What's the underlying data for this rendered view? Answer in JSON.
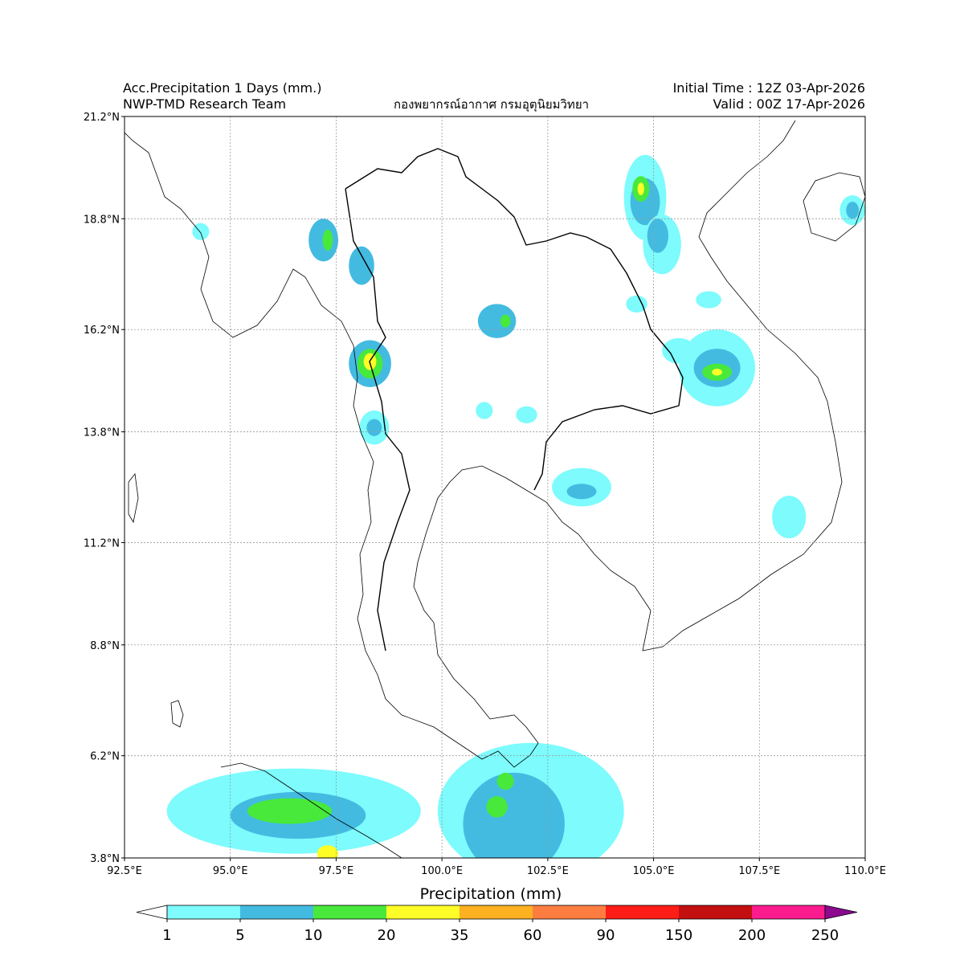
{
  "header": {
    "title": "Acc.Precipitation 1 Days (mm.)",
    "team": "NWP-TMD Research Team",
    "agency": "กองพยากรณ์อากาศ กรมอุตุนิยมวิทยา",
    "initial_time": "Initial Time : 12Z 03-Apr-2026",
    "valid_time": "Valid : 00Z 17-Apr-2026"
  },
  "map": {
    "lon_range": [
      92.5,
      110.0
    ],
    "lat_range": [
      3.8,
      21.2
    ],
    "lat_ticks": [
      {
        "value": 21.2,
        "label": "21.2°N"
      },
      {
        "value": 18.8,
        "label": "18.8°N"
      },
      {
        "value": 16.2,
        "label": "16.2°N"
      },
      {
        "value": 13.8,
        "label": "13.8°N"
      },
      {
        "value": 11.2,
        "label": "11.2°N"
      },
      {
        "value": 8.8,
        "label": "8.8°N"
      },
      {
        "value": 6.2,
        "label": "6.2°N"
      },
      {
        "value": 3.8,
        "label": "3.8°N"
      }
    ],
    "lon_ticks": [
      {
        "value": 92.5,
        "label": "92.5°E"
      },
      {
        "value": 95.0,
        "label": "95.0°E"
      },
      {
        "value": 97.5,
        "label": "97.5°E"
      },
      {
        "value": 100.0,
        "label": "100.0°E"
      },
      {
        "value": 102.5,
        "label": "102.5°E"
      },
      {
        "value": 105.0,
        "label": "105.0°E"
      },
      {
        "value": 107.5,
        "label": "107.5°E"
      },
      {
        "value": 110.0,
        "label": "110.0°E"
      }
    ],
    "grid": true,
    "rain_areas": [
      {
        "lon": 94.3,
        "lat": 18.5,
        "rx": 0.2,
        "ry": 0.2,
        "level": 1
      },
      {
        "lon": 97.2,
        "lat": 18.3,
        "rx": 0.35,
        "ry": 0.5,
        "level": 2
      },
      {
        "lon": 97.3,
        "lat": 18.3,
        "rx": 0.12,
        "ry": 0.25,
        "level": 3
      },
      {
        "lon": 98.1,
        "lat": 17.7,
        "rx": 0.3,
        "ry": 0.45,
        "level": 2
      },
      {
        "lon": 98.3,
        "lat": 15.4,
        "rx": 0.5,
        "ry": 0.55,
        "level": 2
      },
      {
        "lon": 98.3,
        "lat": 15.4,
        "rx": 0.3,
        "ry": 0.35,
        "level": 3
      },
      {
        "lon": 98.3,
        "lat": 15.45,
        "rx": 0.15,
        "ry": 0.2,
        "level": 4
      },
      {
        "lon": 98.4,
        "lat": 13.9,
        "rx": 0.35,
        "ry": 0.4,
        "level": 1
      },
      {
        "lon": 98.4,
        "lat": 13.9,
        "rx": 0.18,
        "ry": 0.2,
        "level": 2
      },
      {
        "lon": 101.3,
        "lat": 16.4,
        "rx": 0.45,
        "ry": 0.4,
        "level": 2
      },
      {
        "lon": 101.5,
        "lat": 16.4,
        "rx": 0.12,
        "ry": 0.15,
        "level": 3
      },
      {
        "lon": 101.0,
        "lat": 14.3,
        "rx": 0.2,
        "ry": 0.2,
        "level": 1
      },
      {
        "lon": 102.0,
        "lat": 14.2,
        "rx": 0.25,
        "ry": 0.2,
        "level": 1
      },
      {
        "lon": 104.8,
        "lat": 19.3,
        "rx": 0.5,
        "ry": 1.0,
        "level": 1
      },
      {
        "lon": 104.8,
        "lat": 19.2,
        "rx": 0.35,
        "ry": 0.55,
        "level": 2
      },
      {
        "lon": 104.7,
        "lat": 19.5,
        "rx": 0.2,
        "ry": 0.3,
        "level": 3
      },
      {
        "lon": 104.7,
        "lat": 19.5,
        "rx": 0.08,
        "ry": 0.15,
        "level": 4
      },
      {
        "lon": 105.2,
        "lat": 18.2,
        "rx": 0.45,
        "ry": 0.7,
        "level": 1
      },
      {
        "lon": 105.1,
        "lat": 18.4,
        "rx": 0.25,
        "ry": 0.4,
        "level": 2
      },
      {
        "lon": 106.5,
        "lat": 15.3,
        "rx": 0.9,
        "ry": 0.9,
        "level": 1
      },
      {
        "lon": 106.5,
        "lat": 15.3,
        "rx": 0.55,
        "ry": 0.45,
        "level": 2
      },
      {
        "lon": 106.5,
        "lat": 15.2,
        "rx": 0.35,
        "ry": 0.2,
        "level": 3
      },
      {
        "lon": 106.5,
        "lat": 15.2,
        "rx": 0.12,
        "ry": 0.08,
        "level": 4
      },
      {
        "lon": 109.7,
        "lat": 19.0,
        "rx": 0.3,
        "ry": 0.35,
        "level": 1
      },
      {
        "lon": 109.7,
        "lat": 19.0,
        "rx": 0.15,
        "ry": 0.2,
        "level": 2
      },
      {
        "lon": 103.3,
        "lat": 12.5,
        "rx": 0.7,
        "ry": 0.45,
        "level": 1
      },
      {
        "lon": 103.3,
        "lat": 12.4,
        "rx": 0.35,
        "ry": 0.18,
        "level": 2
      },
      {
        "lon": 108.2,
        "lat": 11.8,
        "rx": 0.4,
        "ry": 0.5,
        "level": 1
      },
      {
        "lon": 106.3,
        "lat": 16.9,
        "rx": 0.3,
        "ry": 0.2,
        "level": 1
      },
      {
        "lon": 104.6,
        "lat": 16.8,
        "rx": 0.25,
        "ry": 0.2,
        "level": 1
      },
      {
        "lon": 105.6,
        "lat": 15.7,
        "rx": 0.4,
        "ry": 0.3,
        "level": 1
      },
      {
        "lon": 96.5,
        "lat": 4.9,
        "rx": 3.0,
        "ry": 1.0,
        "level": 1
      },
      {
        "lon": 96.6,
        "lat": 4.8,
        "rx": 1.6,
        "ry": 0.55,
        "level": 2
      },
      {
        "lon": 96.4,
        "lat": 4.9,
        "rx": 1.0,
        "ry": 0.3,
        "level": 3
      },
      {
        "lon": 97.3,
        "lat": 3.9,
        "rx": 0.25,
        "ry": 0.2,
        "level": 4
      },
      {
        "lon": 102.1,
        "lat": 4.9,
        "rx": 2.2,
        "ry": 1.6,
        "level": 1
      },
      {
        "lon": 101.7,
        "lat": 4.6,
        "rx": 1.2,
        "ry": 1.2,
        "level": 2
      },
      {
        "lon": 101.3,
        "lat": 5.0,
        "rx": 0.25,
        "ry": 0.25,
        "level": 3
      },
      {
        "lon": 101.5,
        "lat": 5.6,
        "rx": 0.2,
        "ry": 0.2,
        "level": 3
      }
    ]
  },
  "colorbar": {
    "label": "Precipitation (mm)",
    "levels": [
      "1",
      "5",
      "10",
      "20",
      "35",
      "60",
      "90",
      "150",
      "200",
      "250"
    ],
    "colors": [
      "#7dfbfd",
      "#43bbe1",
      "#48e93b",
      "#fffd27",
      "#fdb020",
      "#fd7d41",
      "#fd1c16",
      "#c40f10",
      "#fb1b8f",
      "#8b0a8f"
    ]
  }
}
